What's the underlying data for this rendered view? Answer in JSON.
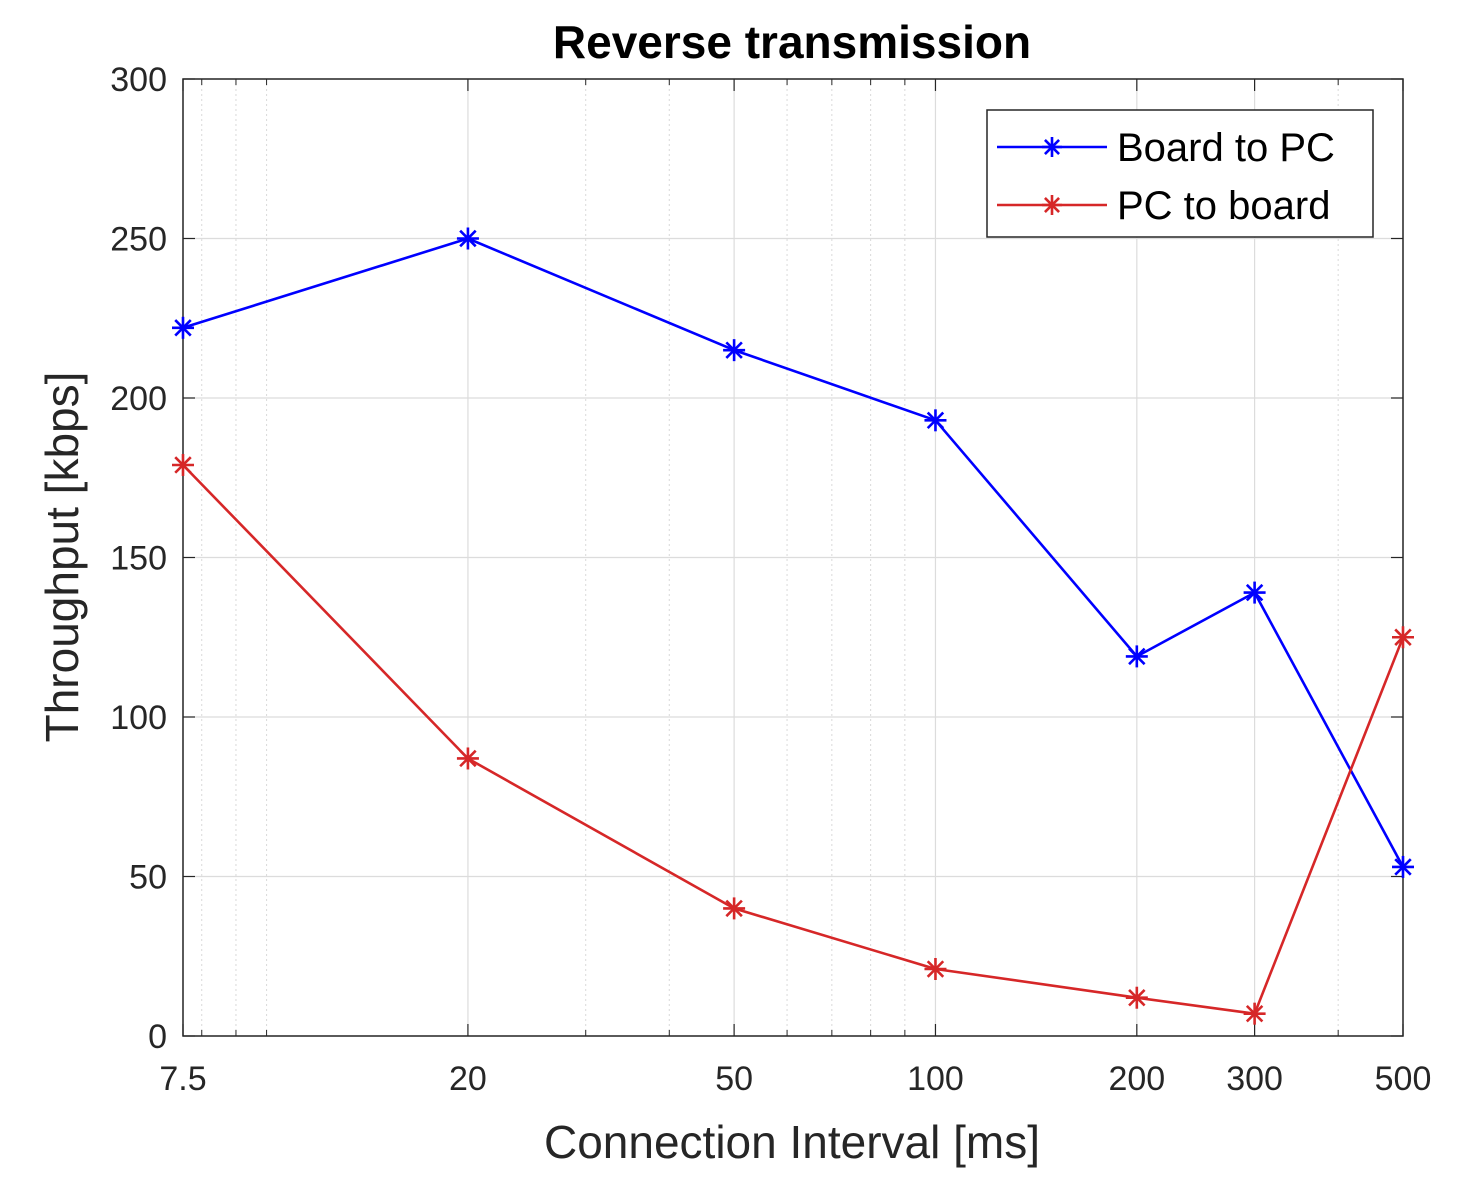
{
  "chart_data": {
    "type": "line",
    "title": "Reverse transmission",
    "xlabel": "Connection Interval [ms]",
    "ylabel": "Throughput [kbps]",
    "x_scale": "log",
    "xlim": [
      7.5,
      500
    ],
    "ylim": [
      0,
      300
    ],
    "x_ticks": [
      7.5,
      20,
      50,
      100,
      200,
      300,
      500
    ],
    "x_tick_labels": [
      "7.5",
      "20",
      "50",
      "100",
      "200",
      "300",
      "500"
    ],
    "y_ticks": [
      0,
      50,
      100,
      150,
      200,
      250,
      300
    ],
    "y_tick_labels": [
      "0",
      "50",
      "100",
      "150",
      "200",
      "250",
      "300"
    ],
    "grid": "on",
    "minor_grid": "on",
    "legend_position": "top-right",
    "x": [
      7.5,
      20,
      50,
      100,
      200,
      300,
      500
    ],
    "series": [
      {
        "name": "Board to PC",
        "color": "#0000ff",
        "marker": "asterisk",
        "values": [
          222,
          250,
          215,
          193,
          119,
          139,
          53
        ]
      },
      {
        "name": "PC to board",
        "color": "#d62728",
        "marker": "asterisk",
        "values": [
          179,
          87,
          40,
          21,
          12,
          7,
          125
        ]
      }
    ]
  }
}
